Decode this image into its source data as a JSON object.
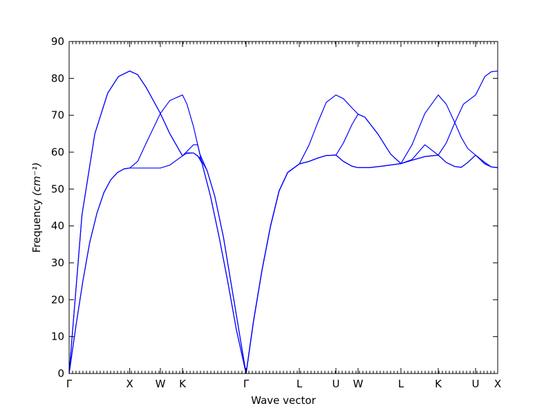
{
  "chart_data": {
    "type": "line",
    "title": "",
    "xlabel": "Wave vector",
    "ylabel": "Frequency",
    "ylabel_unit": "(cm⁻¹)",
    "ylim": [
      0,
      90
    ],
    "y_ticks": [
      0,
      10,
      20,
      30,
      40,
      50,
      60,
      70,
      80,
      90
    ],
    "xlim": [
      0,
      1
    ],
    "grid": false,
    "color": "#0000ff",
    "k_points": [
      {
        "label": "Γ",
        "x": 0.0
      },
      {
        "label": "X",
        "x": 0.1413
      },
      {
        "label": "W",
        "x": 0.2129
      },
      {
        "label": "K",
        "x": 0.2645
      },
      {
        "label": "Γ",
        "x": 0.4129
      },
      {
        "label": "L",
        "x": 0.5371
      },
      {
        "label": "U",
        "x": 0.6226
      },
      {
        "label": "W",
        "x": 0.6742
      },
      {
        "label": "L",
        "x": 0.7742
      },
      {
        "label": "K",
        "x": 0.8613
      },
      {
        "label": "U",
        "x": 0.9484
      },
      {
        "label": "X",
        "x": 1.0
      }
    ],
    "series": [
      {
        "points": [
          [
            0.0,
            0
          ],
          [
            0.016,
            13
          ],
          [
            0.032,
            25
          ],
          [
            0.048,
            35.5
          ],
          [
            0.065,
            43.5
          ],
          [
            0.081,
            49
          ],
          [
            0.097,
            52.5
          ],
          [
            0.113,
            54.5
          ],
          [
            0.129,
            55.5
          ],
          [
            0.1413,
            55.7
          ],
          [
            0.16,
            55.7
          ],
          [
            0.18,
            55.7
          ],
          [
            0.2129,
            55.7
          ],
          [
            0.235,
            56.5
          ],
          [
            0.2645,
            59
          ],
          [
            0.275,
            59.8
          ],
          [
            0.29,
            59.8
          ],
          [
            0.305,
            58.5
          ],
          [
            0.322,
            55
          ],
          [
            0.34,
            48
          ],
          [
            0.36,
            37
          ],
          [
            0.38,
            23
          ],
          [
            0.4,
            9
          ],
          [
            0.4129,
            0
          ],
          [
            0.43,
            14
          ],
          [
            0.45,
            28
          ],
          [
            0.47,
            40
          ],
          [
            0.49,
            49.5
          ],
          [
            0.51,
            54.5
          ],
          [
            0.5371,
            56.8
          ],
          [
            0.56,
            57.5
          ],
          [
            0.58,
            58.4
          ],
          [
            0.6,
            59.1
          ],
          [
            0.6226,
            59.2
          ],
          [
            0.64,
            57.5
          ],
          [
            0.66,
            56.2
          ],
          [
            0.6742,
            55.8
          ],
          [
            0.7,
            55.8
          ],
          [
            0.73,
            56.2
          ],
          [
            0.7742,
            56.9
          ],
          [
            0.8,
            57.8
          ],
          [
            0.83,
            58.8
          ],
          [
            0.8613,
            59.2
          ],
          [
            0.88,
            57.2
          ],
          [
            0.9,
            56.1
          ],
          [
            0.915,
            55.9
          ],
          [
            0.93,
            57.2
          ],
          [
            0.9484,
            59.2
          ],
          [
            0.97,
            57.2
          ],
          [
            0.985,
            56
          ],
          [
            1.0,
            55.8
          ]
        ]
      },
      {
        "points": [
          [
            0.0,
            0
          ],
          [
            0.016,
            13
          ],
          [
            0.032,
            25
          ],
          [
            0.048,
            35.5
          ],
          [
            0.065,
            43.5
          ],
          [
            0.081,
            49
          ],
          [
            0.097,
            52.5
          ],
          [
            0.113,
            54.5
          ],
          [
            0.129,
            55.5
          ],
          [
            0.1413,
            55.7
          ],
          [
            0.16,
            57.5
          ],
          [
            0.18,
            62.5
          ],
          [
            0.2129,
            70.5
          ],
          [
            0.235,
            74
          ],
          [
            0.2645,
            75.5
          ],
          [
            0.275,
            73
          ],
          [
            0.29,
            67
          ],
          [
            0.305,
            59.5
          ],
          [
            0.322,
            55
          ],
          [
            0.34,
            48
          ],
          [
            0.36,
            37
          ],
          [
            0.38,
            23
          ],
          [
            0.4,
            9
          ],
          [
            0.4129,
            0
          ],
          [
            0.43,
            14
          ],
          [
            0.45,
            28
          ],
          [
            0.47,
            40
          ],
          [
            0.49,
            49.5
          ],
          [
            0.51,
            54.5
          ],
          [
            0.5371,
            56.8
          ],
          [
            0.56,
            57.5
          ],
          [
            0.58,
            58.4
          ],
          [
            0.6,
            59.1
          ],
          [
            0.6226,
            59.2
          ],
          [
            0.64,
            62.5
          ],
          [
            0.66,
            67.5
          ],
          [
            0.6742,
            70.3
          ],
          [
            0.69,
            69.5
          ],
          [
            0.72,
            65
          ],
          [
            0.75,
            59.5
          ],
          [
            0.7742,
            56.9
          ],
          [
            0.8,
            58
          ],
          [
            0.83,
            62
          ],
          [
            0.8613,
            59.2
          ],
          [
            0.88,
            57.2
          ],
          [
            0.9,
            56.1
          ],
          [
            0.915,
            55.9
          ],
          [
            0.93,
            57.2
          ],
          [
            0.9484,
            59.2
          ],
          [
            0.97,
            57.2
          ],
          [
            0.985,
            56
          ],
          [
            1.0,
            55.8
          ]
        ]
      },
      {
        "points": [
          [
            0.0,
            0
          ],
          [
            0.03,
            43
          ],
          [
            0.06,
            65
          ],
          [
            0.09,
            76
          ],
          [
            0.115,
            80.5
          ],
          [
            0.1413,
            82
          ],
          [
            0.16,
            81
          ],
          [
            0.18,
            77.5
          ],
          [
            0.2129,
            70.5
          ],
          [
            0.235,
            65
          ],
          [
            0.2645,
            59
          ],
          [
            0.29,
            62
          ],
          [
            0.3,
            62
          ],
          [
            0.31,
            57
          ],
          [
            0.33,
            48
          ],
          [
            0.35,
            37
          ],
          [
            0.37,
            25
          ],
          [
            0.39,
            12
          ],
          [
            0.4129,
            0
          ],
          [
            0.43,
            14
          ],
          [
            0.45,
            28
          ],
          [
            0.47,
            40
          ],
          [
            0.49,
            49.5
          ],
          [
            0.51,
            54.5
          ],
          [
            0.5371,
            56.8
          ],
          [
            0.56,
            62
          ],
          [
            0.58,
            68
          ],
          [
            0.6,
            73.5
          ],
          [
            0.6226,
            75.5
          ],
          [
            0.64,
            74.5
          ],
          [
            0.66,
            72
          ],
          [
            0.6742,
            70.3
          ],
          [
            0.69,
            69.5
          ],
          [
            0.72,
            65
          ],
          [
            0.75,
            59.5
          ],
          [
            0.7742,
            56.9
          ],
          [
            0.8,
            62
          ],
          [
            0.83,
            70.5
          ],
          [
            0.8613,
            75.5
          ],
          [
            0.88,
            73
          ],
          [
            0.9,
            68
          ],
          [
            0.915,
            64
          ],
          [
            0.93,
            61
          ],
          [
            0.9484,
            59.2
          ],
          [
            0.97,
            56.8
          ],
          [
            0.985,
            56
          ],
          [
            1.0,
            55.8
          ]
        ]
      },
      {
        "points": [
          [
            0.0,
            0
          ],
          [
            0.03,
            43
          ],
          [
            0.06,
            65
          ],
          [
            0.09,
            76
          ],
          [
            0.115,
            80.5
          ],
          [
            0.1413,
            82
          ],
          [
            0.16,
            81
          ],
          [
            0.18,
            77.5
          ],
          [
            0.2129,
            70.5
          ],
          [
            0.235,
            65
          ],
          [
            0.2645,
            59
          ],
          [
            0.27,
            59.6
          ],
          [
            0.29,
            59.8
          ],
          [
            0.3,
            59
          ],
          [
            0.31,
            57
          ],
          [
            0.33,
            48
          ],
          [
            0.35,
            37
          ],
          [
            0.37,
            25
          ],
          [
            0.39,
            12
          ],
          [
            0.4129,
            0
          ],
          [
            0.43,
            14
          ],
          [
            0.45,
            28
          ],
          [
            0.47,
            40
          ],
          [
            0.49,
            49.5
          ],
          [
            0.51,
            54.5
          ],
          [
            0.5371,
            56.8
          ],
          [
            0.56,
            57.5
          ],
          [
            0.58,
            58.4
          ],
          [
            0.6,
            59.1
          ],
          [
            0.6226,
            59.2
          ],
          [
            0.64,
            57.5
          ],
          [
            0.66,
            56.2
          ],
          [
            0.6742,
            55.8
          ],
          [
            0.7,
            55.8
          ],
          [
            0.73,
            56.2
          ],
          [
            0.7742,
            56.9
          ],
          [
            0.8,
            57.8
          ],
          [
            0.83,
            58.8
          ],
          [
            0.8613,
            59.2
          ],
          [
            0.88,
            62.5
          ],
          [
            0.9,
            68
          ],
          [
            0.92,
            73
          ],
          [
            0.9484,
            75.5
          ],
          [
            0.97,
            80.5
          ],
          [
            0.985,
            81.8
          ],
          [
            1.0,
            82
          ]
        ]
      }
    ]
  }
}
